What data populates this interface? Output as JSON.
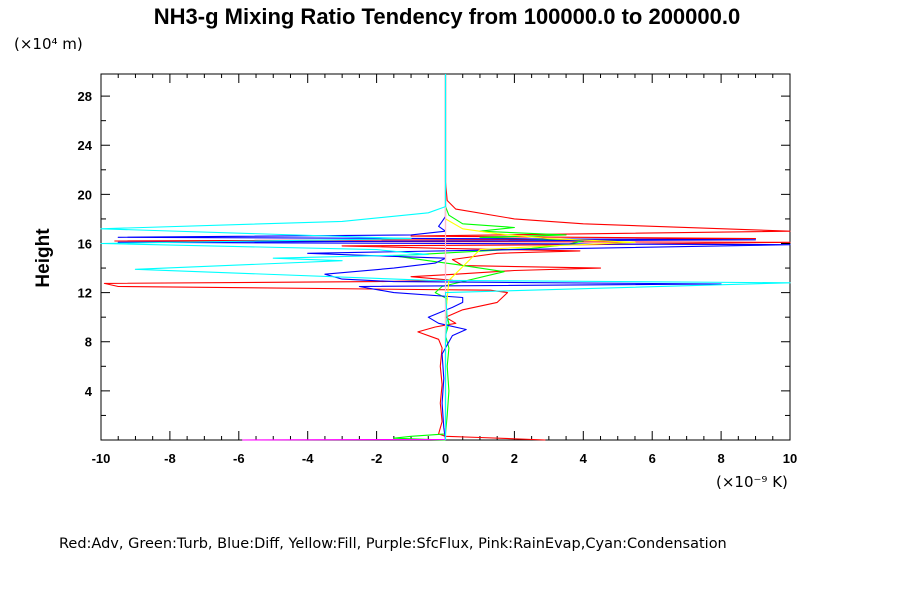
{
  "chart_data": {
    "type": "line",
    "title": "NH3-g Mixing Ratio Tendency from 100000.0 to 200000.0",
    "ylabel": "Height",
    "xlabel": "",
    "x_unit_label": "(×10⁻⁹ K)",
    "y_unit_label": "(×10⁴ m)",
    "xlim": [
      -10,
      10
    ],
    "ylim": [
      0,
      29.8
    ],
    "x_ticks": [
      -10,
      -8,
      -6,
      -4,
      -2,
      0,
      2,
      4,
      6,
      8,
      10
    ],
    "y_ticks": [
      4,
      8,
      12,
      16,
      20,
      24,
      28
    ],
    "x_tick_labels": [
      "-10",
      "-8",
      "-6",
      "-4",
      "-2",
      "0",
      "2",
      "4",
      "6",
      "8",
      "10"
    ],
    "y_tick_labels": [
      "4",
      "8",
      "12",
      "16",
      "20",
      "24",
      "28"
    ],
    "grid": false,
    "legend_text": "Red:Adv,  Green:Turb,  Blue:Diff,  Yellow:Fill,  Purple:SfcFlux,  Pink:RainEvap,Cyan:Condensation",
    "series": [
      {
        "name": "Adv",
        "color": "#ff0000",
        "points": [
          [
            2.9,
            0.0
          ],
          [
            1.0,
            0.2
          ],
          [
            0.0,
            0.3
          ],
          [
            -0.2,
            0.5
          ],
          [
            -0.1,
            1.5
          ],
          [
            -0.15,
            3.0
          ],
          [
            -0.1,
            4.5
          ],
          [
            -0.15,
            6.0
          ],
          [
            -0.1,
            7.5
          ],
          [
            -0.2,
            8.2
          ],
          [
            -0.8,
            8.8
          ],
          [
            -0.3,
            9.2
          ],
          [
            0.3,
            9.5
          ],
          [
            0.0,
            10.0
          ],
          [
            0.5,
            10.6
          ],
          [
            1.5,
            11.2
          ],
          [
            1.8,
            12.0
          ],
          [
            1.3,
            12.2
          ],
          [
            -9.5,
            12.5
          ],
          [
            -9.9,
            12.75
          ],
          [
            -2.0,
            12.9
          ],
          [
            0.2,
            13.0
          ],
          [
            -1.0,
            13.3
          ],
          [
            0.3,
            13.5
          ],
          [
            2.0,
            13.8
          ],
          [
            4.5,
            14.0
          ],
          [
            0.5,
            14.2
          ],
          [
            0.2,
            14.7
          ],
          [
            1.5,
            15.2
          ],
          [
            3.9,
            15.4
          ],
          [
            0.0,
            15.6
          ],
          [
            -3.0,
            15.8
          ],
          [
            4.0,
            15.9
          ],
          [
            10.0,
            16.1
          ],
          [
            -9.6,
            16.2
          ],
          [
            9.0,
            16.4
          ],
          [
            -1.0,
            16.6
          ],
          [
            10.0,
            17.0
          ],
          [
            4.0,
            17.6
          ],
          [
            2.0,
            18.0
          ],
          [
            0.3,
            18.8
          ],
          [
            0.05,
            19.5
          ],
          [
            0.0,
            21.0
          ],
          [
            0.0,
            29.8
          ]
        ]
      },
      {
        "name": "Turb",
        "color": "#00ff00",
        "points": [
          [
            0.0,
            0.0
          ],
          [
            -1.5,
            0.15
          ],
          [
            -1.0,
            0.3
          ],
          [
            0.0,
            0.5
          ],
          [
            0.05,
            2.0
          ],
          [
            0.1,
            4.0
          ],
          [
            0.05,
            6.0
          ],
          [
            0.1,
            7.5
          ],
          [
            0.0,
            8.5
          ],
          [
            0.1,
            9.5
          ],
          [
            0.0,
            10.5
          ],
          [
            0.05,
            11.5
          ],
          [
            -0.3,
            12.0
          ],
          [
            -0.1,
            12.5
          ],
          [
            1.7,
            13.7
          ],
          [
            0.3,
            14.3
          ],
          [
            -0.5,
            14.6
          ],
          [
            -1.5,
            15.0
          ],
          [
            0.5,
            15.3
          ],
          [
            2.5,
            15.6
          ],
          [
            3.5,
            15.9
          ],
          [
            4.0,
            16.2
          ],
          [
            1.0,
            16.5
          ],
          [
            3.5,
            16.7
          ],
          [
            1.0,
            17.0
          ],
          [
            2.0,
            17.3
          ],
          [
            0.5,
            17.6
          ],
          [
            0.1,
            18.3
          ],
          [
            0.0,
            19.0
          ],
          [
            0.0,
            29.8
          ]
        ]
      },
      {
        "name": "Diff",
        "color": "#0000ff",
        "points": [
          [
            0.0,
            0.0
          ],
          [
            -0.05,
            1.0
          ],
          [
            -0.1,
            3.0
          ],
          [
            -0.05,
            5.0
          ],
          [
            -0.1,
            7.0
          ],
          [
            0.2,
            8.5
          ],
          [
            0.6,
            9.0
          ],
          [
            -0.2,
            9.5
          ],
          [
            -0.5,
            10.0
          ],
          [
            0.2,
            10.8
          ],
          [
            0.5,
            11.2
          ],
          [
            0.5,
            11.6
          ],
          [
            -1.5,
            12.0
          ],
          [
            -2.5,
            12.5
          ],
          [
            8.0,
            12.7
          ],
          [
            -1.5,
            12.9
          ],
          [
            -3.0,
            13.1
          ],
          [
            -3.5,
            13.5
          ],
          [
            -1.5,
            14.0
          ],
          [
            -0.3,
            14.4
          ],
          [
            0.0,
            14.8
          ],
          [
            -2.0,
            15.0
          ],
          [
            -4.0,
            15.2
          ],
          [
            10.0,
            15.9
          ],
          [
            -9.5,
            16.1
          ],
          [
            9.0,
            16.3
          ],
          [
            -9.5,
            16.5
          ],
          [
            -1.0,
            16.7
          ],
          [
            0.0,
            17.0
          ],
          [
            -0.2,
            17.4
          ],
          [
            -0.1,
            17.8
          ],
          [
            0.0,
            18.2
          ],
          [
            0.0,
            29.8
          ]
        ]
      },
      {
        "name": "Fill",
        "color": "#ffff00",
        "points": [
          [
            0.0,
            0.0
          ],
          [
            0.0,
            10.0
          ],
          [
            0.1,
            13.0
          ],
          [
            1.0,
            15.5
          ],
          [
            3.0,
            15.8
          ],
          [
            5.5,
            16.1
          ],
          [
            3.0,
            16.4
          ],
          [
            1.5,
            16.8
          ],
          [
            0.5,
            17.2
          ],
          [
            0.0,
            18.0
          ],
          [
            0.0,
            29.8
          ]
        ]
      },
      {
        "name": "SfcFlux",
        "color": "#ff00ff",
        "points": [
          [
            -5.9,
            0.0
          ],
          [
            0.0,
            0.05
          ],
          [
            0.0,
            29.8
          ]
        ]
      },
      {
        "name": "RainEvap",
        "color": "#ffc0cb",
        "points": [
          [
            0.0,
            0.0
          ],
          [
            0.0,
            29.8
          ]
        ]
      },
      {
        "name": "Condensation",
        "color": "#00ffff",
        "points": [
          [
            0.0,
            0.0
          ],
          [
            0.0,
            8.0
          ],
          [
            0.05,
            10.0
          ],
          [
            0.0,
            12.0
          ],
          [
            10.0,
            12.8
          ],
          [
            -0.5,
            13.0
          ],
          [
            -9.0,
            13.9
          ],
          [
            -3.0,
            14.6
          ],
          [
            -5.0,
            14.8
          ],
          [
            -0.5,
            15.1
          ],
          [
            -2.0,
            15.5
          ],
          [
            -10.0,
            16.0
          ],
          [
            -1.0,
            16.4
          ],
          [
            -10.0,
            17.2
          ],
          [
            -3.0,
            17.8
          ],
          [
            -0.5,
            18.5
          ],
          [
            0.0,
            19.0
          ],
          [
            0.0,
            29.8
          ]
        ]
      }
    ]
  }
}
